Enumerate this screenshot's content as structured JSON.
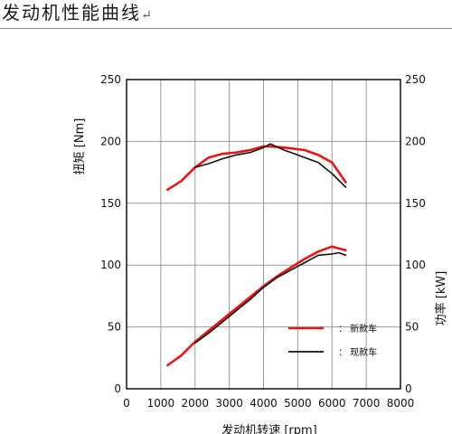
{
  "document": {
    "heading": "发动机性能曲线",
    "paragraph_mark": "↵"
  },
  "chart_data": {
    "type": "line",
    "title": "",
    "xlabel": "发动机转速 [rpm]",
    "ylabel_left": "扭矩 [Nm]",
    "ylabel_right": "功率 [kW]",
    "xlim": [
      0,
      8000
    ],
    "ylim_left": [
      0,
      250
    ],
    "ylim_right": [
      0,
      250
    ],
    "x_ticks": [
      "0",
      "1000",
      "2000",
      "3000",
      "4000",
      "5000",
      "6000",
      "7000",
      "8000"
    ],
    "y_ticks": [
      "0",
      "50",
      "100",
      "150",
      "200",
      "250"
    ],
    "grid": {
      "vertical": true,
      "horizontal": true
    },
    "legend_position": "lower-right, inside plot",
    "series": [
      {
        "name": "新款车",
        "quantity": "torque",
        "color": "#e01818",
        "x": [
          1200,
          1600,
          2000,
          2400,
          2800,
          3200,
          3600,
          4000,
          4200,
          4600,
          5200,
          5600,
          6000,
          6400
        ],
        "values": [
          161,
          168,
          179,
          187,
          190,
          191,
          193,
          196,
          196,
          195,
          193,
          189,
          183,
          167
        ]
      },
      {
        "name": "现款车",
        "quantity": "torque",
        "color": "#111111",
        "x": [
          2000,
          2400,
          2800,
          3200,
          3600,
          4000,
          4200,
          4600,
          5000,
          5200,
          5600,
          6000,
          6400
        ],
        "values": [
          179,
          182,
          186,
          189,
          191,
          195,
          198,
          193,
          189,
          187,
          183,
          174,
          163
        ]
      },
      {
        "name": "新款车",
        "quantity": "power",
        "color": "#e01818",
        "x": [
          1200,
          1600,
          2000,
          2400,
          2800,
          3200,
          3600,
          4000,
          4400,
          4800,
          5200,
          5600,
          6000,
          6400
        ],
        "values": [
          19,
          27,
          38,
          47,
          56,
          65,
          74,
          83,
          91,
          98,
          105,
          111,
          115,
          112
        ]
      },
      {
        "name": "现款车",
        "quantity": "power",
        "color": "#111111",
        "x": [
          2000,
          2400,
          2800,
          3200,
          3600,
          4000,
          4400,
          4800,
          5200,
          5600,
          6000,
          6200,
          6400
        ],
        "values": [
          37,
          45,
          54,
          63,
          72,
          82,
          90,
          96,
          102,
          108,
          109,
          110,
          108
        ]
      }
    ],
    "legend": [
      {
        "label": "新款车",
        "prefix": "：",
        "color": "#e01818"
      },
      {
        "label": "现款车",
        "prefix": "：",
        "color": "#111111"
      }
    ]
  }
}
